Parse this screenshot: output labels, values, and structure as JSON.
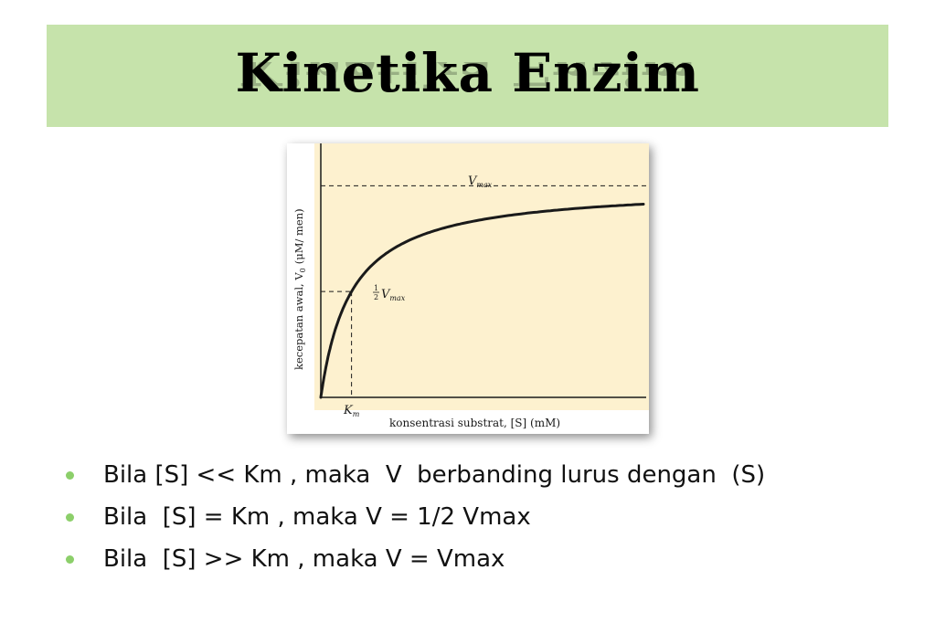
{
  "slide": {
    "title": "Kinetika Enzim"
  },
  "figure": {
    "ylabel": "kecepatan awal, V",
    "ylabel_sub": "0",
    "ylabel_unit": "(μM/ men)",
    "xlabel": "konsentrasi substrat, [S] (mM)",
    "vmax_label": "V",
    "vmax_sub": "max",
    "half_num": "1",
    "half_den": "2",
    "half_label": "V",
    "half_sub": "max",
    "km_label": "K",
    "km_sub": "m",
    "colors": {
      "background": "#fdf1cf",
      "curve": "#1a1a1a"
    }
  },
  "chart_data": {
    "type": "line",
    "title": "",
    "xlabel": "konsentrasi substrat, [S] (mM)",
    "ylabel": "kecepatan awal, V0 (μM/ men)",
    "annotations": [
      "Vmax",
      "1/2 Vmax",
      "Km"
    ],
    "series": [
      {
        "name": "",
        "x": [
          0,
          0.25,
          0.5,
          1,
          1.5,
          2,
          3,
          4,
          5,
          6,
          8,
          10
        ],
        "y": [
          0,
          0.2,
          0.333,
          0.5,
          0.6,
          0.667,
          0.75,
          0.8,
          0.833,
          0.857,
          0.889,
          0.909
        ]
      }
    ],
    "vmax": 1,
    "km": 1,
    "xlim": [
      0,
      10.5
    ],
    "ylim": [
      0,
      1.2
    ],
    "grid": false
  },
  "bullets": [
    "Bila [S] << Km , maka  V  berbanding lurus dengan  (S)",
    "Bila  [S] = Km , maka V = 1/2 Vmax",
    "Bila  [S] >> Km , maka V = Vmax"
  ],
  "colors": {
    "title_band": "#c6e3ab",
    "bullet": "#8ccf6a"
  }
}
